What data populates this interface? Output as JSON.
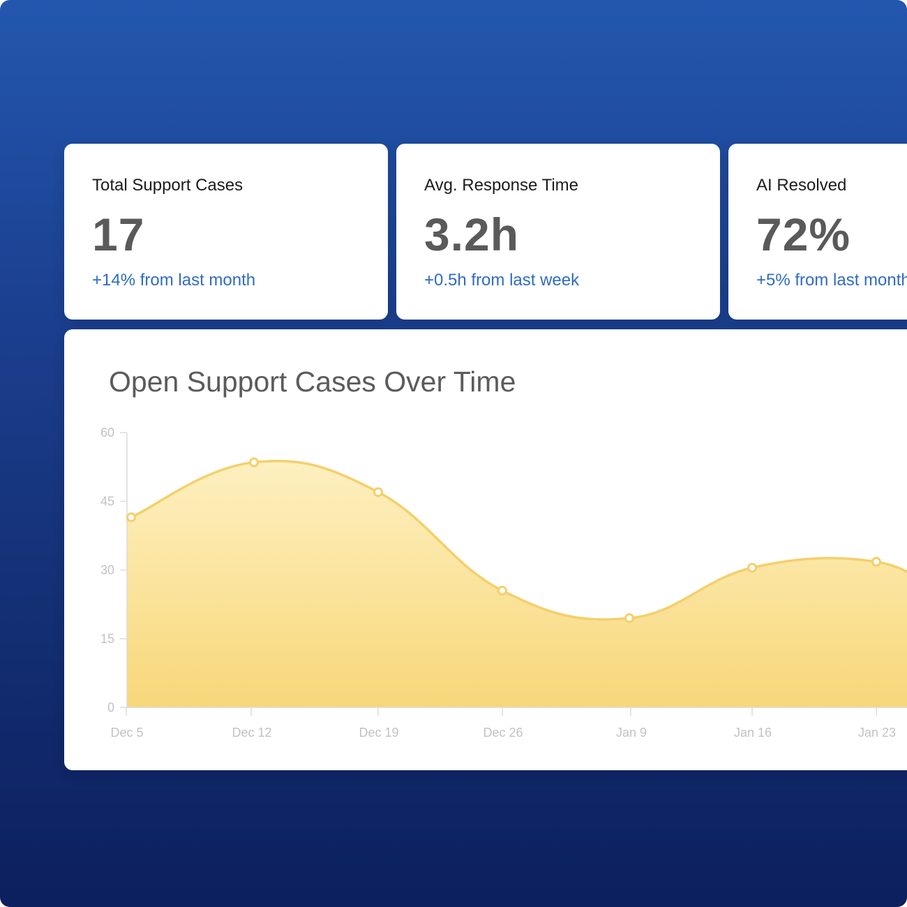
{
  "stats": [
    {
      "label": "Total Support Cases",
      "value": "17",
      "change": "+14% from last month"
    },
    {
      "label": "Avg. Response Time",
      "value": "3.2h",
      "change": "+0.5h from last week"
    },
    {
      "label": "AI Resolved",
      "value": "72%",
      "change": "+5% from last month"
    }
  ],
  "chart_data": {
    "type": "area",
    "title": "Open Support Cases Over Time",
    "categories": [
      "Dec 5",
      "Dec 12",
      "Dec 19",
      "Dec 26",
      "Jan 9",
      "Jan 16",
      "Jan 23"
    ],
    "series": [
      {
        "values": [
          41.5,
          53.5,
          47,
          25.5,
          19.5,
          30.5,
          31.8
        ]
      }
    ],
    "yticks": [
      "0",
      "15",
      "30",
      "45",
      "60"
    ],
    "ylim": [
      0,
      60
    ],
    "xlabel": "",
    "ylabel": "",
    "grid": false,
    "colors": {
      "line": "#f5cf6b",
      "fill_top": "#fdf0c0",
      "fill_bottom": "#f8d77a",
      "axis": "#dcdcdc"
    }
  },
  "theme": {
    "background_top": "#2357ae",
    "background_bottom": "#0c1f5e",
    "accent": "#2f6cc4"
  }
}
